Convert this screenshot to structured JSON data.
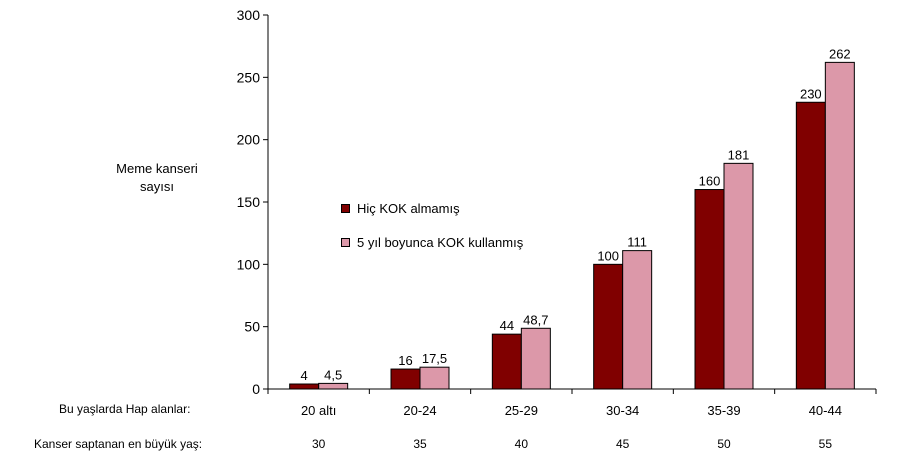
{
  "chart_data": {
    "type": "bar",
    "ylabel": "Meme kanseri sayısı",
    "ylabel_lines": [
      "Meme kanseri",
      "sayısı"
    ],
    "ylim": [
      0,
      300
    ],
    "yticks": [
      0,
      50,
      100,
      150,
      200,
      250,
      300
    ],
    "categories": [
      "20 altı",
      "20-24",
      "25-29",
      "30-34",
      "35-39",
      "40-44"
    ],
    "series": [
      {
        "name": "Hiç KOK almamış",
        "values": [
          4,
          16,
          44,
          100,
          160,
          230
        ],
        "labels": [
          "4",
          "16",
          "44",
          "100",
          "160",
          "230"
        ],
        "color": "#800000"
      },
      {
        "name": "5 yıl boyunca KOK kullanmış",
        "values": [
          4.5,
          17.5,
          48.7,
          111,
          181,
          262
        ],
        "labels": [
          "4,5",
          "17,5",
          "48,7",
          "111",
          "181",
          "262"
        ],
        "color": "#dc98a9"
      }
    ],
    "legend_position": "middle-left",
    "grid": false
  },
  "table": {
    "row1_label": "Bu yaşlarda Hap alanlar:",
    "row2_label": "Kanser saptanan en büyük yaş:",
    "row2_values": [
      "30",
      "35",
      "40",
      "45",
      "50",
      "55"
    ]
  }
}
